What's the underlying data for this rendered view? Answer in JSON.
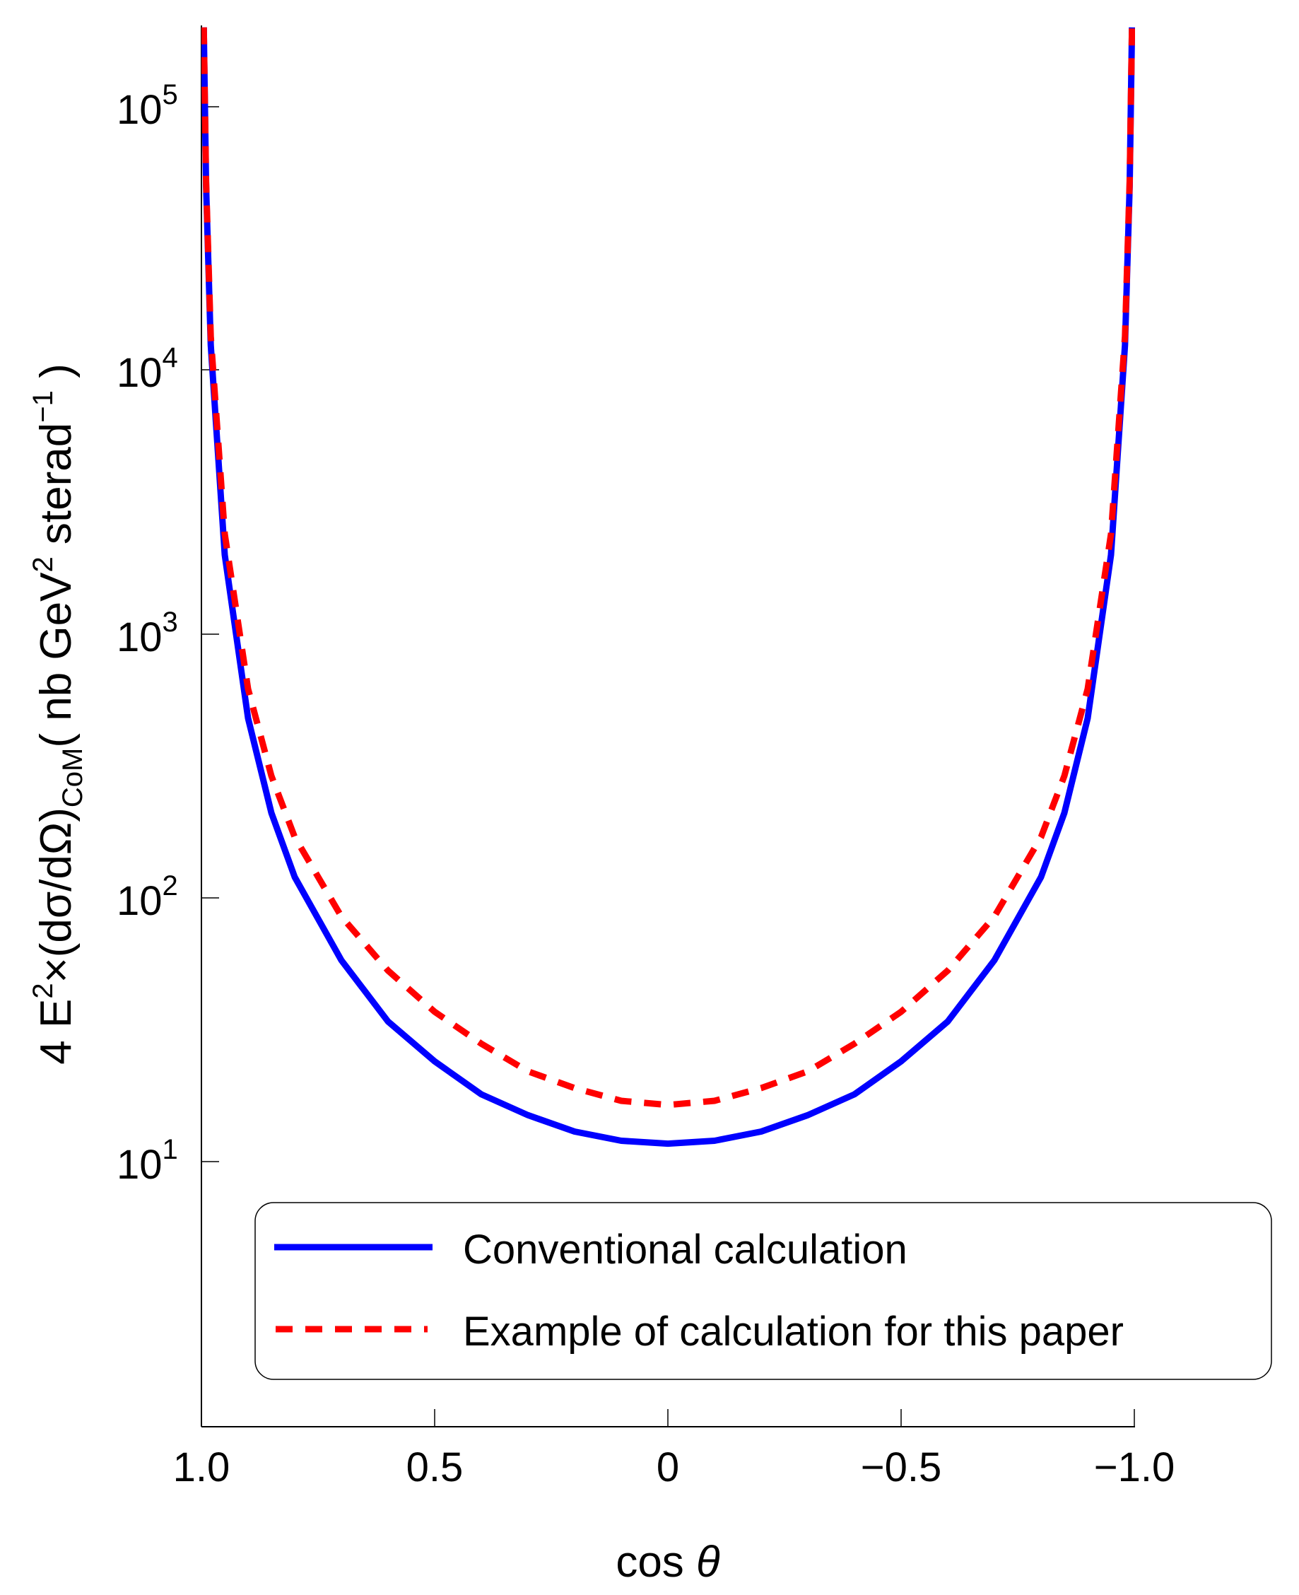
{
  "chart_data": {
    "type": "line",
    "title": "",
    "xlabel": "cos θ",
    "ylabel": "4 E² × (dσ/dΩ)_CoM (nb GeV² sterad⁻¹)",
    "x_reversed": true,
    "xlim": [
      1.0,
      -1.0
    ],
    "ylim_log10": [
      0.35,
      5.3
    ],
    "yscale": "log",
    "x_ticks": [
      "1.0",
      "0.5",
      "0",
      "−0.5",
      "−1.0"
    ],
    "x_tick_values": [
      1.0,
      0.5,
      0,
      -0.5,
      -1.0
    ],
    "y_ticks": [
      "10^1",
      "10^2",
      "10^3",
      "10^4",
      "10^5"
    ],
    "y_tick_values": [
      10,
      100,
      1000,
      10000,
      100000
    ],
    "grid": false,
    "legend_position": "lower center (inside)",
    "x": [
      0.995,
      0.99,
      0.98,
      0.95,
      0.9,
      0.85,
      0.8,
      0.7,
      0.6,
      0.5,
      0.4,
      0.3,
      0.2,
      0.1,
      0.0,
      -0.1,
      -0.2,
      -0.3,
      -0.4,
      -0.5,
      -0.6,
      -0.7,
      -0.8,
      -0.85,
      -0.9,
      -0.95,
      -0.98,
      -0.99,
      -0.995
    ],
    "series": [
      {
        "name": "Conventional calculation",
        "color": "#0000ff",
        "style": "solid",
        "values": [
          200000,
          50000,
          12500,
          2000,
          480,
          210,
          120,
          58,
          34,
          24,
          18,
          15,
          13,
          12,
          11.7,
          12,
          13,
          15,
          18,
          24,
          34,
          58,
          120,
          210,
          480,
          2000,
          12500,
          50000,
          200000
        ]
      },
      {
        "name": "Example of calculation for this paper",
        "color": "#ff0000",
        "style": "dashed",
        "values": [
          200000,
          52000,
          13500,
          2400,
          620,
          290,
          170,
          85,
          53,
          37,
          28,
          22,
          19,
          17,
          16.4,
          17,
          19,
          22,
          28,
          37,
          53,
          85,
          170,
          290,
          620,
          2400,
          13500,
          52000,
          200000
        ]
      }
    ]
  },
  "axes": {
    "x_title_main": "cos ",
    "x_title_symbol": "θ",
    "y_title": {
      "p1": "4 E",
      "sup1": "2",
      "p2": "×(dσ/dΩ)",
      "sub": "CoM",
      "p3": "( nb GeV",
      "sup2": "2",
      "p4": " sterad",
      "sup3": "−1",
      "p5": " )"
    },
    "y_tick_base": "10",
    "y_tick_exps": [
      "5",
      "4",
      "3",
      "2",
      "1"
    ],
    "x_ticks": [
      "1.0",
      "0.5",
      "0",
      "−0.5",
      "−1.0"
    ]
  },
  "legend": {
    "items": [
      {
        "label": "Conventional calculation",
        "color": "#0000ff"
      },
      {
        "label": "Example of calculation for this paper",
        "color": "#ff0000"
      }
    ]
  }
}
